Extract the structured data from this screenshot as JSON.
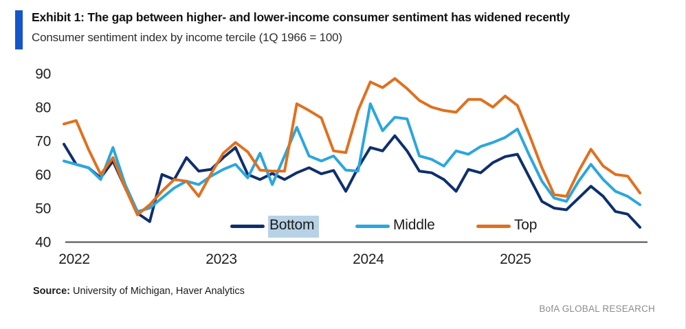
{
  "header": {
    "title": "Exhibit 1: The gap between higher- and lower-income consumer sentiment has widened recently",
    "subtitle": "Consumer sentiment index by income tercile (1Q 1966 = 100)",
    "accent_color": "#1456c9"
  },
  "chart_data": {
    "type": "line",
    "title": "Exhibit 1: The gap between higher- and lower-income consumer sentiment has widened recently",
    "subtitle": "Consumer sentiment index by income tercile (1Q 1966 = 100)",
    "frequency": "monthly",
    "x_range": [
      "2022-01",
      "2025-12"
    ],
    "x_tick_labels": [
      "2022",
      "2023",
      "2024",
      "2025"
    ],
    "ylim": [
      40,
      90
    ],
    "y_ticks": [
      40,
      50,
      60,
      70,
      80,
      90
    ],
    "grid": false,
    "legend_position": "bottom-inside",
    "highlighted_legend_label": "Bottom",
    "axis_color": "#4b4b4b",
    "legend_highlight_color": "#b7d2e5",
    "series": [
      {
        "name": "Bottom",
        "color": "#0e2f6d",
        "values": [
          69,
          63,
          62,
          59,
          64,
          56,
          48.5,
          46,
          60,
          58.5,
          65,
          61,
          61.5,
          65,
          68,
          60,
          58.5,
          60.3,
          58.5,
          60.5,
          62,
          60.2,
          61.2,
          55,
          62,
          68,
          67,
          71.5,
          67,
          61,
          60.5,
          58.5,
          55,
          61.5,
          60.5,
          63.5,
          65.3,
          66,
          59,
          52,
          50,
          49.5,
          53,
          56.5,
          53.5,
          49,
          48.2,
          44.3
        ]
      },
      {
        "name": "Middle",
        "color": "#2ba6de",
        "values": [
          64,
          63,
          62,
          58.5,
          68,
          57,
          49,
          50,
          53,
          56,
          58,
          57,
          59.5,
          61.5,
          63,
          59,
          66.3,
          57,
          65.5,
          74,
          65.5,
          64,
          65.5,
          61.3,
          61,
          81,
          73,
          77,
          76.5,
          65.5,
          64.5,
          62.5,
          67,
          66,
          68.3,
          69.5,
          71,
          73.5,
          65.5,
          58,
          53,
          52,
          58,
          63,
          58.5,
          55,
          53.5,
          51
        ]
      },
      {
        "name": "Top",
        "color": "#e0701e",
        "values": [
          75,
          76,
          67.5,
          60,
          65,
          56,
          48,
          51,
          55,
          58.5,
          58,
          53.5,
          60.2,
          66.3,
          69.5,
          66.7,
          61.3,
          61,
          61,
          81,
          79,
          76.8,
          67,
          66.5,
          79,
          87.5,
          85.8,
          88.5,
          85.5,
          82,
          80,
          79,
          78.5,
          82.3,
          82.3,
          80,
          83.3,
          80.5,
          71.5,
          62,
          54,
          53.5,
          61,
          67.5,
          62.5,
          60,
          59.5,
          54.5
        ]
      }
    ]
  },
  "footer": {
    "source_label": "Source:",
    "source_text": "University of Michigan, Haver Analytics",
    "brand": "BofA GLOBAL RESEARCH"
  }
}
